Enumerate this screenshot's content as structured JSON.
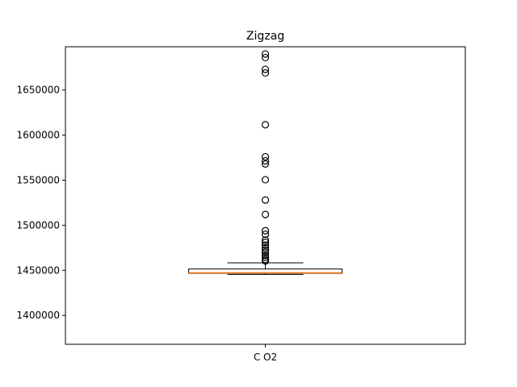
{
  "chart_data": {
    "type": "box",
    "title": "Zigzag",
    "xlabel": "",
    "ylabel": "",
    "categories": [
      "C O2"
    ],
    "ylim": [
      1368000,
      1698000
    ],
    "yticks": [
      1400000,
      1450000,
      1500000,
      1550000,
      1600000,
      1650000
    ],
    "ytick_labels": [
      "1400000",
      "1450000",
      "1500000",
      "1550000",
      "1600000",
      "1650000"
    ],
    "grid": false,
    "legend": "none",
    "box": {
      "whisker_low": 1445500,
      "q1": 1446800,
      "median": 1447400,
      "q3": 1451500,
      "whisker_high": 1458300,
      "outliers": [
        1460500,
        1462000,
        1464500,
        1466500,
        1470000,
        1472500,
        1475000,
        1478000,
        1481000,
        1483500,
        1490000,
        1494000,
        1512000,
        1528000,
        1550500,
        1568000,
        1571500,
        1576000,
        1611500,
        1669000,
        1673000,
        1686000,
        1690000
      ]
    },
    "colors": {
      "box": "#000000",
      "median": "#ff7f0e",
      "outlier_edge": "#000000"
    }
  }
}
